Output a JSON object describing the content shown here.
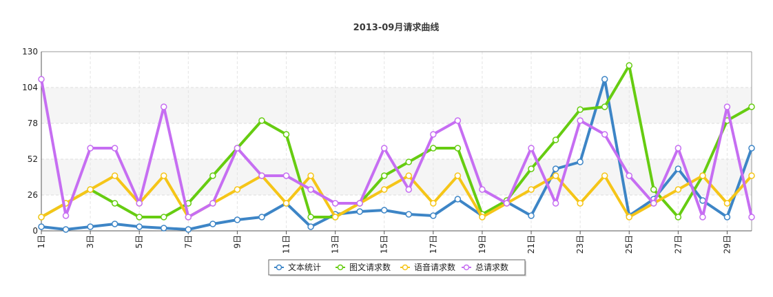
{
  "chart_data": {
    "type": "line",
    "title": "2013-09月请求曲线",
    "xlabel": "",
    "ylabel": "",
    "ylim": [
      0,
      130
    ],
    "yticks": [
      "0",
      "26",
      "52",
      "78",
      "104",
      "130"
    ],
    "x": [
      "1日",
      "2日",
      "3日",
      "4日",
      "5日",
      "6日",
      "7日",
      "8日",
      "9日",
      "10日",
      "11日",
      "12日",
      "13日",
      "14日",
      "15日",
      "16日",
      "17日",
      "18日",
      "19日",
      "20日",
      "21日",
      "22日",
      "23日",
      "24日",
      "25日",
      "26日",
      "27日",
      "28日",
      "29日",
      "30日"
    ],
    "xtick_labels": [
      "1日",
      "3日",
      "5日",
      "7日",
      "9日",
      "11日",
      "13日",
      "15日",
      "17日",
      "19日",
      "21日",
      "23日",
      "25日",
      "27日",
      "29日"
    ],
    "legend_position": "bottom-center",
    "grid": true,
    "series": [
      {
        "name": "文本统计",
        "color": "#3d85c6",
        "values": [
          3,
          1,
          3,
          5,
          3,
          2,
          1,
          5,
          8,
          10,
          20,
          3,
          12,
          14,
          15,
          12,
          11,
          23,
          11,
          21,
          11,
          45,
          50,
          110,
          11,
          23,
          45,
          22,
          10,
          60
        ]
      },
      {
        "name": "图文请求数",
        "color": "#66cc11",
        "values": [
          10,
          20,
          30,
          20,
          10,
          10,
          20,
          40,
          60,
          80,
          70,
          10,
          10,
          20,
          40,
          50,
          60,
          60,
          12,
          22,
          45,
          66,
          88,
          90,
          120,
          30,
          10,
          40,
          80,
          90
        ]
      },
      {
        "name": "语音请求数",
        "color": "#f5c518",
        "values": [
          10,
          20,
          30,
          40,
          20,
          40,
          10,
          20,
          30,
          40,
          20,
          40,
          10,
          20,
          30,
          40,
          20,
          40,
          10,
          20,
          30,
          40,
          20,
          40,
          10,
          20,
          30,
          40,
          20,
          40
        ]
      },
      {
        "name": "总请求数",
        "color": "#c66ef2",
        "values": [
          110,
          11,
          60,
          60,
          20,
          90,
          10,
          20,
          60,
          40,
          40,
          30,
          20,
          20,
          60,
          30,
          70,
          80,
          30,
          20,
          60,
          20,
          80,
          70,
          40,
          20,
          60,
          10,
          90,
          10
        ]
      }
    ]
  }
}
